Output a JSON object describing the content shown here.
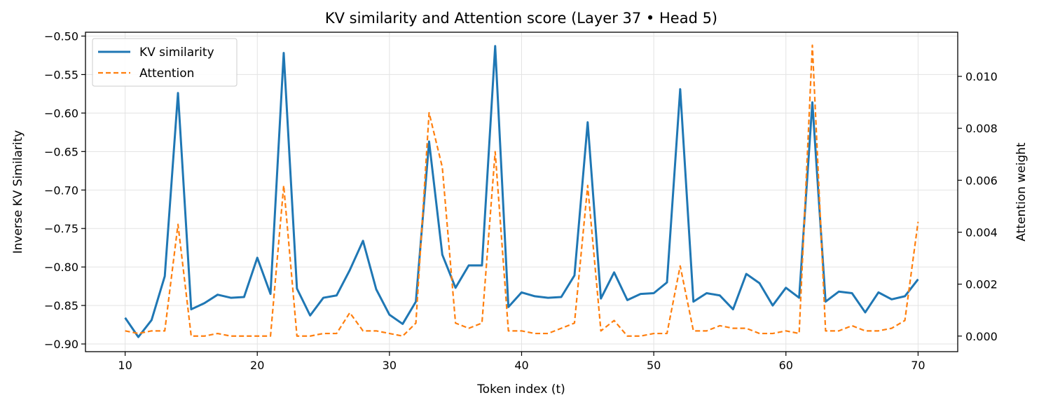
{
  "chart_data": {
    "type": "line",
    "title": "KV similarity and Attention score (Layer 37 • Head 5)",
    "xlabel": "Token index (t)",
    "ylabel": "Inverse KV Similarity",
    "y2label": "Attention weight",
    "xlim": [
      7,
      73
    ],
    "ylim": [
      -0.91,
      -0.495
    ],
    "y2lim": [
      -0.0006,
      0.0117
    ],
    "x_ticks": [
      10,
      20,
      30,
      40,
      50,
      60,
      70
    ],
    "y_ticks": [
      -0.9,
      -0.85,
      -0.8,
      -0.75,
      -0.7,
      -0.65,
      -0.6,
      -0.55,
      -0.5
    ],
    "y_tick_labels": [
      "−0.90",
      "−0.85",
      "−0.80",
      "−0.75",
      "−0.70",
      "−0.65",
      "−0.60",
      "−0.55",
      "−0.50"
    ],
    "y2_ticks": [
      0,
      0.002,
      0.004,
      0.006,
      0.008,
      0.01
    ],
    "y2_tick_labels": [
      "0.000",
      "0.002",
      "0.004",
      "0.006",
      "0.008",
      "0.010"
    ],
    "grid": true,
    "legend_position": "top-left",
    "x": [
      10,
      11,
      12,
      13,
      14,
      15,
      16,
      17,
      18,
      19,
      20,
      21,
      22,
      23,
      24,
      25,
      26,
      27,
      28,
      29,
      30,
      31,
      32,
      33,
      34,
      35,
      36,
      37,
      38,
      39,
      40,
      41,
      42,
      43,
      44,
      45,
      46,
      47,
      48,
      49,
      50,
      51,
      52,
      53,
      54,
      55,
      56,
      57,
      58,
      59,
      60,
      61,
      62,
      63,
      64,
      65,
      66,
      67,
      68,
      69,
      70
    ],
    "series": [
      {
        "name": "KV similarity",
        "axis": "left",
        "color": "#1f77b4",
        "style": "solid",
        "values": [
          -0.866,
          -0.891,
          -0.869,
          -0.812,
          -0.574,
          -0.855,
          -0.847,
          -0.836,
          -0.84,
          -0.839,
          -0.788,
          -0.835,
          -0.522,
          -0.828,
          -0.863,
          -0.84,
          -0.837,
          -0.804,
          -0.766,
          -0.829,
          -0.862,
          -0.874,
          -0.845,
          -0.637,
          -0.784,
          -0.827,
          -0.798,
          -0.798,
          -0.513,
          -0.852,
          -0.833,
          -0.838,
          -0.84,
          -0.839,
          -0.811,
          -0.612,
          -0.841,
          -0.807,
          -0.843,
          -0.835,
          -0.834,
          -0.82,
          -0.569,
          -0.845,
          -0.834,
          -0.837,
          -0.855,
          -0.809,
          -0.821,
          -0.85,
          -0.827,
          -0.84,
          -0.586,
          -0.845,
          -0.832,
          -0.834,
          -0.859,
          -0.833,
          -0.842,
          -0.838,
          -0.816
        ]
      },
      {
        "name": "Attention",
        "axis": "right",
        "color": "#ff7f0e",
        "style": "dashed",
        "values": [
          0.0002,
          0.0001,
          0.0002,
          0.0002,
          0.0043,
          0.0,
          0.0,
          0.0001,
          0.0,
          0.0,
          0.0,
          0.0,
          0.0058,
          0.0,
          0.0,
          0.0001,
          0.0001,
          0.0009,
          0.0002,
          0.0002,
          0.0001,
          0.0,
          0.0005,
          0.0086,
          0.0065,
          0.0005,
          0.0003,
          0.0005,
          0.0071,
          0.0002,
          0.0002,
          0.0001,
          0.0001,
          0.0003,
          0.0005,
          0.0058,
          0.0002,
          0.0006,
          0.0,
          0.0,
          0.0001,
          0.0001,
          0.0027,
          0.0002,
          0.0002,
          0.0004,
          0.0003,
          0.0003,
          0.0001,
          0.0001,
          0.0002,
          0.0001,
          0.0112,
          0.0002,
          0.0002,
          0.0004,
          0.0002,
          0.0002,
          0.0003,
          0.0006,
          0.0044
        ]
      }
    ]
  }
}
